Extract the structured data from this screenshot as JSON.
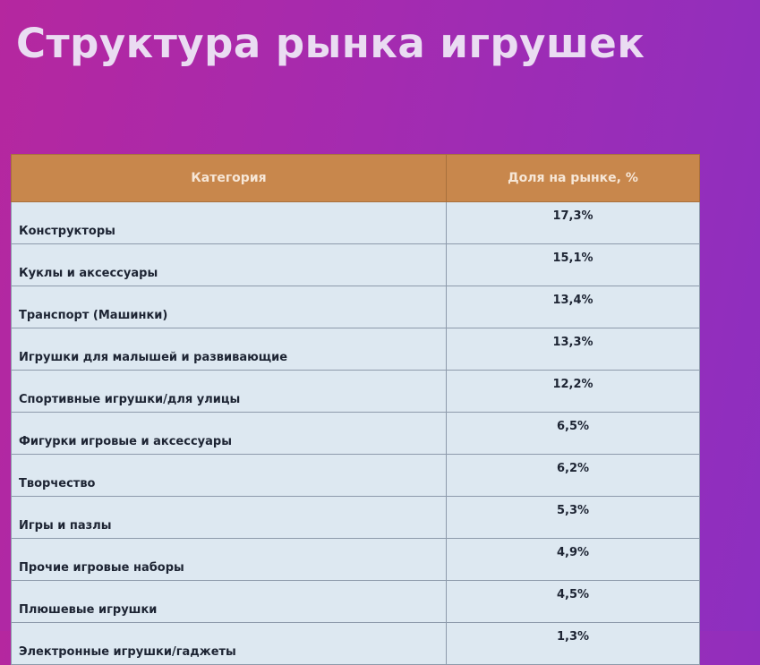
{
  "header": {
    "title": "Структура рынка игрушек"
  },
  "table": {
    "columns": [
      "Категория",
      "Доля на рынке, %"
    ],
    "rows": [
      [
        "Конструкторы",
        "17,3%"
      ],
      [
        "Куклы и аксессуары",
        "15,1%"
      ],
      [
        "Транспорт (Машинки)",
        "13,4%"
      ],
      [
        "Игрушки для малышей и развивающие",
        "13,3%"
      ],
      [
        "Спортивные игрушки/для улицы",
        "12,2%"
      ],
      [
        "Фигурки игровые и аксессуары",
        "6,5%"
      ],
      [
        "Творчество",
        "6,2%"
      ],
      [
        "Игры и пазлы",
        "5,3%"
      ],
      [
        "Прочие игровые наборы",
        "4,9%"
      ],
      [
        "Плюшевые игрушки",
        "4,5%"
      ],
      [
        "Электронные игрушки/гаджеты",
        "1,3%"
      ]
    ]
  }
}
